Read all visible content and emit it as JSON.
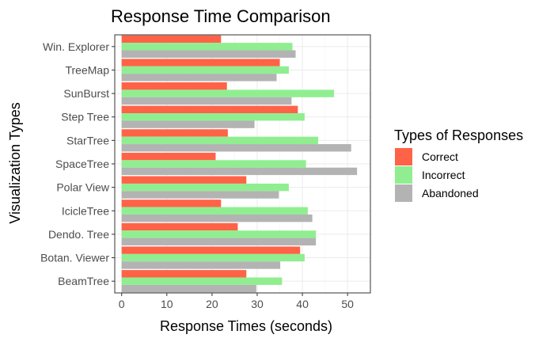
{
  "chart_data": {
    "type": "bar",
    "orientation": "horizontal",
    "title": "Response Time Comparison",
    "xlabel": "Response Times (seconds)",
    "ylabel": "Visualization Types",
    "xlim": [
      0,
      54
    ],
    "x_ticks": [
      0,
      10,
      20,
      30,
      40,
      50
    ],
    "grid": true,
    "legend": {
      "title": "Types of Responses",
      "position": "right"
    },
    "categories": [
      "Win. Explorer",
      "TreeMap",
      "SunBurst",
      "Step Tree",
      "StarTree",
      "SpaceTree",
      "Polar View",
      "IcicleTree",
      "Dendo. Tree",
      "Botan. Viewer",
      "BeamTree"
    ],
    "series": [
      {
        "name": "Correct",
        "color": "#ff6347",
        "values": [
          22.0,
          35.0,
          23.3,
          39.0,
          23.5,
          20.8,
          27.6,
          22.0,
          25.7,
          39.5,
          27.6
        ]
      },
      {
        "name": "Incorrect",
        "color": "#90ee90",
        "values": [
          37.8,
          37.0,
          47.0,
          40.5,
          43.5,
          40.8,
          37.0,
          41.2,
          43.0,
          40.5,
          35.5
        ]
      },
      {
        "name": "Abandoned",
        "color": "#b3b3b3",
        "values": [
          38.5,
          34.3,
          37.6,
          29.4,
          50.8,
          52.1,
          34.8,
          42.2,
          43.0,
          35.1,
          29.8
        ]
      }
    ]
  }
}
